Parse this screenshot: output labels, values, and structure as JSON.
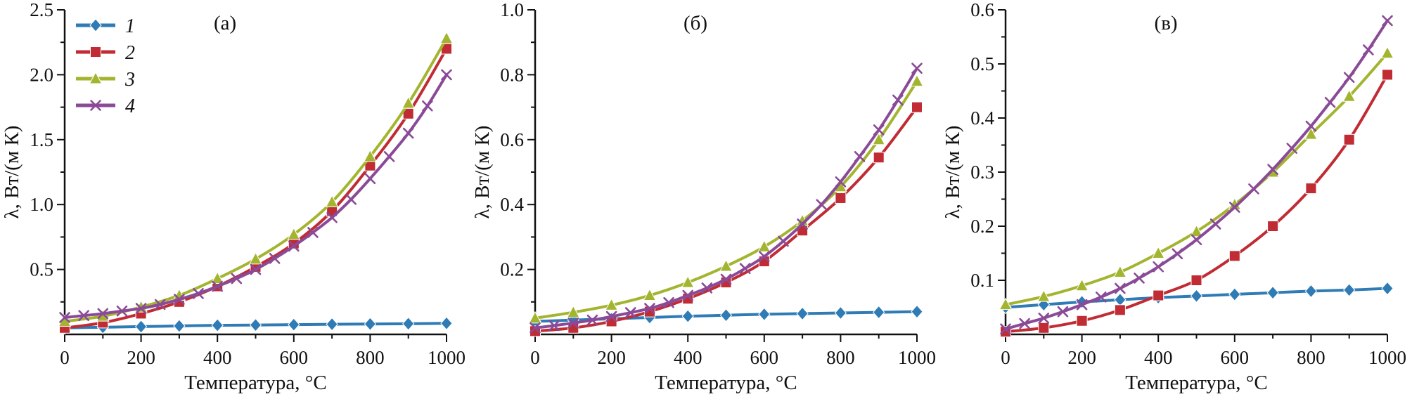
{
  "figure": {
    "background": "#ffffff",
    "axis_color": "#111111",
    "text_color": "#111111"
  },
  "chart_data": [
    {
      "id": "a",
      "type": "line",
      "panel_label": "(а)",
      "xlabel": "Температура, °C",
      "ylabel": "λ, Вт/(м К)",
      "xlim": [
        0,
        1000
      ],
      "ylim": [
        0,
        2.5
      ],
      "xticks": [
        0,
        200,
        400,
        600,
        800,
        1000
      ],
      "xticklabels": [
        "0",
        "200",
        "400",
        "600",
        "800",
        "1000"
      ],
      "yticks": [
        0.5,
        1.0,
        1.5,
        2.0,
        2.5
      ],
      "yticklabels": [
        "0.5",
        "1.0",
        "1.5",
        "2.0",
        "2.5"
      ],
      "x_minor_step": 100,
      "y_minor_step": 0.25,
      "grid": false,
      "legend": {
        "show": true,
        "position": "top-left",
        "entries": [
          "1",
          "2",
          "3",
          "4"
        ]
      },
      "series": [
        {
          "name": "1",
          "color": "#2e7bb5",
          "marker": "diamond",
          "x": [
            0,
            100,
            200,
            300,
            400,
            500,
            600,
            700,
            800,
            900,
            1000
          ],
          "y": [
            0.05,
            0.055,
            0.06,
            0.065,
            0.07,
            0.072,
            0.075,
            0.078,
            0.08,
            0.082,
            0.085
          ]
        },
        {
          "name": "2",
          "color": "#c02b34",
          "marker": "square",
          "x": [
            0,
            100,
            200,
            300,
            400,
            500,
            600,
            700,
            800,
            900,
            1000
          ],
          "y": [
            0.05,
            0.09,
            0.16,
            0.25,
            0.37,
            0.52,
            0.7,
            0.95,
            1.3,
            1.7,
            2.2
          ]
        },
        {
          "name": "3",
          "color": "#a3b52f",
          "marker": "triangle",
          "x": [
            0,
            100,
            200,
            300,
            400,
            500,
            600,
            700,
            800,
            900,
            1000
          ],
          "y": [
            0.1,
            0.14,
            0.21,
            0.3,
            0.43,
            0.58,
            0.77,
            1.02,
            1.37,
            1.78,
            2.28
          ]
        },
        {
          "name": "4",
          "color": "#8a4a97",
          "marker": "x",
          "x": [
            0,
            50,
            100,
            150,
            200,
            250,
            300,
            350,
            400,
            450,
            500,
            550,
            600,
            650,
            700,
            750,
            800,
            850,
            900,
            950,
            1000
          ],
          "y": [
            0.13,
            0.145,
            0.16,
            0.18,
            0.2,
            0.23,
            0.27,
            0.315,
            0.37,
            0.43,
            0.5,
            0.585,
            0.68,
            0.785,
            0.9,
            1.04,
            1.2,
            1.37,
            1.55,
            1.76,
            2.0
          ]
        }
      ]
    },
    {
      "id": "b",
      "type": "line",
      "panel_label": "(б)",
      "xlabel": "Температура, °C",
      "ylabel": "λ, Вт/(м К)",
      "xlim": [
        0,
        1000
      ],
      "ylim": [
        0,
        1.0
      ],
      "xticks": [
        0,
        200,
        400,
        600,
        800,
        1000
      ],
      "xticklabels": [
        "0",
        "200",
        "400",
        "600",
        "800",
        "1000"
      ],
      "yticks": [
        0.2,
        0.4,
        0.6,
        0.8,
        1.0
      ],
      "yticklabels": [
        "0.2",
        "0.4",
        "0.6",
        "0.8",
        "1.0"
      ],
      "x_minor_step": 100,
      "y_minor_step": 0.1,
      "grid": false,
      "legend": {
        "show": false,
        "position": "",
        "entries": []
      },
      "series": [
        {
          "name": "1",
          "color": "#2e7bb5",
          "marker": "diamond",
          "x": [
            0,
            100,
            200,
            300,
            400,
            500,
            600,
            700,
            800,
            900,
            1000
          ],
          "y": [
            0.04,
            0.044,
            0.048,
            0.052,
            0.056,
            0.059,
            0.062,
            0.064,
            0.066,
            0.068,
            0.07
          ]
        },
        {
          "name": "2",
          "color": "#c02b34",
          "marker": "square",
          "x": [
            0,
            100,
            200,
            300,
            400,
            500,
            600,
            700,
            800,
            900,
            1000
          ],
          "y": [
            0.01,
            0.02,
            0.04,
            0.07,
            0.11,
            0.16,
            0.225,
            0.32,
            0.42,
            0.545,
            0.7
          ]
        },
        {
          "name": "3",
          "color": "#a3b52f",
          "marker": "triangle",
          "x": [
            0,
            100,
            200,
            300,
            400,
            500,
            600,
            700,
            800,
            900,
            1000
          ],
          "y": [
            0.05,
            0.068,
            0.09,
            0.12,
            0.16,
            0.21,
            0.27,
            0.35,
            0.455,
            0.6,
            0.78
          ]
        },
        {
          "name": "4",
          "color": "#8a4a97",
          "marker": "x",
          "x": [
            0,
            50,
            100,
            150,
            200,
            250,
            300,
            350,
            400,
            450,
            500,
            550,
            600,
            650,
            700,
            750,
            800,
            850,
            900,
            950,
            1000
          ],
          "y": [
            0.02,
            0.027,
            0.035,
            0.044,
            0.055,
            0.067,
            0.08,
            0.098,
            0.12,
            0.143,
            0.17,
            0.203,
            0.24,
            0.287,
            0.34,
            0.4,
            0.47,
            0.548,
            0.63,
            0.722,
            0.82
          ]
        }
      ]
    },
    {
      "id": "v",
      "type": "line",
      "panel_label": "(в)",
      "xlabel": "Температура, °C",
      "ylabel": "λ, Вт/(м К)",
      "xlim": [
        0,
        1000
      ],
      "ylim": [
        0,
        0.6
      ],
      "xticks": [
        0,
        200,
        400,
        600,
        800,
        1000
      ],
      "xticklabels": [
        "0",
        "200",
        "400",
        "600",
        "800",
        "1000"
      ],
      "yticks": [
        0.1,
        0.2,
        0.3,
        0.4,
        0.5,
        0.6
      ],
      "yticklabels": [
        "0.1",
        "0.2",
        "0.3",
        "0.4",
        "0.5",
        "0.6"
      ],
      "x_minor_step": 100,
      "y_minor_step": 0.05,
      "grid": false,
      "legend": {
        "show": false,
        "position": "",
        "entries": []
      },
      "series": [
        {
          "name": "1",
          "color": "#2e7bb5",
          "marker": "diamond",
          "x": [
            0,
            100,
            200,
            300,
            400,
            500,
            600,
            700,
            800,
            900,
            1000
          ],
          "y": [
            0.05,
            0.055,
            0.06,
            0.064,
            0.068,
            0.071,
            0.074,
            0.077,
            0.08,
            0.082,
            0.085
          ]
        },
        {
          "name": "2",
          "color": "#c02b34",
          "marker": "square",
          "x": [
            0,
            100,
            200,
            300,
            400,
            500,
            600,
            700,
            800,
            900,
            1000
          ],
          "y": [
            0.005,
            0.012,
            0.025,
            0.045,
            0.072,
            0.1,
            0.145,
            0.2,
            0.27,
            0.36,
            0.48
          ]
        },
        {
          "name": "3",
          "color": "#a3b52f",
          "marker": "triangle",
          "x": [
            0,
            100,
            200,
            300,
            400,
            500,
            600,
            700,
            800,
            900,
            1000
          ],
          "y": [
            0.055,
            0.07,
            0.09,
            0.115,
            0.15,
            0.19,
            0.24,
            0.3,
            0.37,
            0.44,
            0.52
          ]
        },
        {
          "name": "4",
          "color": "#8a4a97",
          "marker": "x",
          "x": [
            0,
            50,
            100,
            150,
            200,
            250,
            300,
            350,
            400,
            450,
            500,
            550,
            600,
            650,
            700,
            750,
            800,
            850,
            900,
            950,
            1000
          ],
          "y": [
            0.01,
            0.02,
            0.03,
            0.042,
            0.055,
            0.069,
            0.085,
            0.104,
            0.125,
            0.149,
            0.175,
            0.204,
            0.235,
            0.269,
            0.305,
            0.344,
            0.385,
            0.429,
            0.475,
            0.526,
            0.58
          ]
        }
      ]
    }
  ]
}
